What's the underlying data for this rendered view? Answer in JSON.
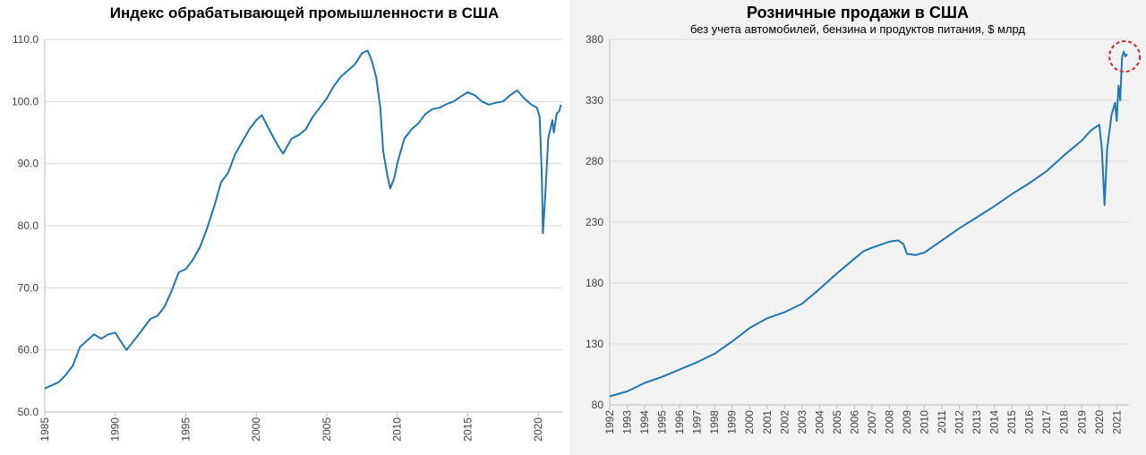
{
  "chart_data": [
    {
      "type": "line",
      "title": "Индекс обрабатывающей промышленности в США",
      "xlabel": "",
      "ylabel": "",
      "xlim": [
        1985,
        2021.7
      ],
      "ylim": [
        50,
        110
      ],
      "y_ticks": [
        "50.0",
        "60.0",
        "70.0",
        "80.0",
        "90.0",
        "100.0",
        "110.0"
      ],
      "x_ticks": [
        "1985",
        "1990",
        "1995",
        "2000",
        "2005",
        "2010",
        "2015",
        "2020"
      ],
      "grid": true,
      "series": [
        {
          "color": "#1f77b4",
          "points": [
            [
              1985.0,
              53.8
            ],
            [
              1986.0,
              54.8
            ],
            [
              1986.5,
              56.0
            ],
            [
              1987.0,
              57.5
            ],
            [
              1987.5,
              60.5
            ],
            [
              1988.0,
              61.5
            ],
            [
              1988.5,
              62.5
            ],
            [
              1989.0,
              61.8
            ],
            [
              1989.5,
              62.5
            ],
            [
              1990.0,
              62.8
            ],
            [
              1990.5,
              61.0
            ],
            [
              1990.8,
              60.0
            ],
            [
              1991.5,
              62.0
            ],
            [
              1992.0,
              63.5
            ],
            [
              1992.5,
              65.0
            ],
            [
              1993.0,
              65.5
            ],
            [
              1993.5,
              67.0
            ],
            [
              1994.0,
              69.5
            ],
            [
              1994.5,
              72.5
            ],
            [
              1995.0,
              73.0
            ],
            [
              1995.5,
              74.5
            ],
            [
              1996.0,
              76.5
            ],
            [
              1996.5,
              79.5
            ],
            [
              1997.0,
              83.0
            ],
            [
              1997.5,
              87.0
            ],
            [
              1998.0,
              88.5
            ],
            [
              1998.5,
              91.5
            ],
            [
              1999.0,
              93.5
            ],
            [
              1999.5,
              95.5
            ],
            [
              2000.0,
              97.0
            ],
            [
              2000.4,
              97.8
            ],
            [
              2000.8,
              96.0
            ],
            [
              2001.5,
              93.0
            ],
            [
              2001.9,
              91.6
            ],
            [
              2002.5,
              94.0
            ],
            [
              2003.0,
              94.6
            ],
            [
              2003.5,
              95.5
            ],
            [
              2004.0,
              97.5
            ],
            [
              2004.5,
              99.0
            ],
            [
              2005.0,
              100.5
            ],
            [
              2005.5,
              102.5
            ],
            [
              2006.0,
              104.0
            ],
            [
              2006.5,
              105.0
            ],
            [
              2007.0,
              106.0
            ],
            [
              2007.5,
              107.8
            ],
            [
              2007.9,
              108.2
            ],
            [
              2008.2,
              106.5
            ],
            [
              2008.5,
              104.0
            ],
            [
              2008.8,
              99.0
            ],
            [
              2009.0,
              92.0
            ],
            [
              2009.3,
              88.0
            ],
            [
              2009.5,
              86.0
            ],
            [
              2009.8,
              87.8
            ],
            [
              2010.0,
              90.0
            ],
            [
              2010.5,
              94.0
            ],
            [
              2011.0,
              95.5
            ],
            [
              2011.5,
              96.5
            ],
            [
              2012.0,
              98.0
            ],
            [
              2012.5,
              98.8
            ],
            [
              2013.0,
              99.0
            ],
            [
              2013.5,
              99.6
            ],
            [
              2014.0,
              100.0
            ],
            [
              2014.5,
              100.8
            ],
            [
              2015.0,
              101.5
            ],
            [
              2015.5,
              101.0
            ],
            [
              2016.0,
              100.0
            ],
            [
              2016.5,
              99.5
            ],
            [
              2017.0,
              99.8
            ],
            [
              2017.5,
              100.0
            ],
            [
              2018.0,
              101.0
            ],
            [
              2018.5,
              101.8
            ],
            [
              2019.0,
              100.5
            ],
            [
              2019.5,
              99.5
            ],
            [
              2019.9,
              99.0
            ],
            [
              2020.1,
              97.5
            ],
            [
              2020.25,
              88.0
            ],
            [
              2020.33,
              78.8
            ],
            [
              2020.5,
              85.0
            ],
            [
              2020.7,
              94.0
            ],
            [
              2021.0,
              97.0
            ],
            [
              2021.1,
              95.0
            ],
            [
              2021.3,
              98.0
            ],
            [
              2021.5,
              98.5
            ],
            [
              2021.6,
              99.5
            ]
          ]
        }
      ]
    },
    {
      "type": "line",
      "title": "Розничные продажи в США",
      "subtitle": "без учета автомобилей, бензина и продуктов питания, $ млрд",
      "xlabel": "",
      "ylabel": "",
      "xlim": [
        1992,
        2021.7
      ],
      "ylim": [
        80,
        380
      ],
      "y_ticks": [
        "80",
        "130",
        "180",
        "230",
        "280",
        "330",
        "380"
      ],
      "x_ticks": [
        "1992",
        "1993",
        "1994",
        "1995",
        "1996",
        "1997",
        "1998",
        "1999",
        "2000",
        "2001",
        "2002",
        "2003",
        "2004",
        "2005",
        "2006",
        "2007",
        "2008",
        "2009",
        "2010",
        "2011",
        "2012",
        "2013",
        "2014",
        "2015",
        "2016",
        "2017",
        "2018",
        "2019",
        "2020",
        "2021"
      ],
      "grid": true,
      "annotation": "red dashed circle around latest values",
      "series": [
        {
          "color": "#1f77b4",
          "points": [
            [
              1992.0,
              87
            ],
            [
              1993.0,
              91
            ],
            [
              1994.0,
              98
            ],
            [
              1995.0,
              103
            ],
            [
              1996.0,
              109
            ],
            [
              1997.0,
              115
            ],
            [
              1998.0,
              122
            ],
            [
              1999.0,
              132
            ],
            [
              2000.0,
              143
            ],
            [
              2001.0,
              151
            ],
            [
              2002.0,
              156
            ],
            [
              2003.0,
              163
            ],
            [
              2004.0,
              175
            ],
            [
              2005.0,
              188
            ],
            [
              2006.0,
              200
            ],
            [
              2006.5,
              206
            ],
            [
              2007.0,
              209
            ],
            [
              2008.0,
              214
            ],
            [
              2008.5,
              215
            ],
            [
              2008.8,
              212
            ],
            [
              2009.0,
              204
            ],
            [
              2009.5,
              203
            ],
            [
              2010.0,
              205
            ],
            [
              2011.0,
              215
            ],
            [
              2012.0,
              225
            ],
            [
              2013.0,
              234
            ],
            [
              2014.0,
              243
            ],
            [
              2015.0,
              253
            ],
            [
              2016.0,
              262
            ],
            [
              2017.0,
              272
            ],
            [
              2018.0,
              285
            ],
            [
              2019.0,
              297
            ],
            [
              2019.5,
              305
            ],
            [
              2020.0,
              310
            ],
            [
              2020.15,
              290
            ],
            [
              2020.3,
              244
            ],
            [
              2020.45,
              290
            ],
            [
              2020.7,
              318
            ],
            [
              2020.9,
              328
            ],
            [
              2021.0,
              313
            ],
            [
              2021.1,
              342
            ],
            [
              2021.2,
              330
            ],
            [
              2021.3,
              365
            ],
            [
              2021.4,
              370
            ],
            [
              2021.5,
              366
            ],
            [
              2021.6,
              368
            ]
          ]
        }
      ]
    }
  ]
}
